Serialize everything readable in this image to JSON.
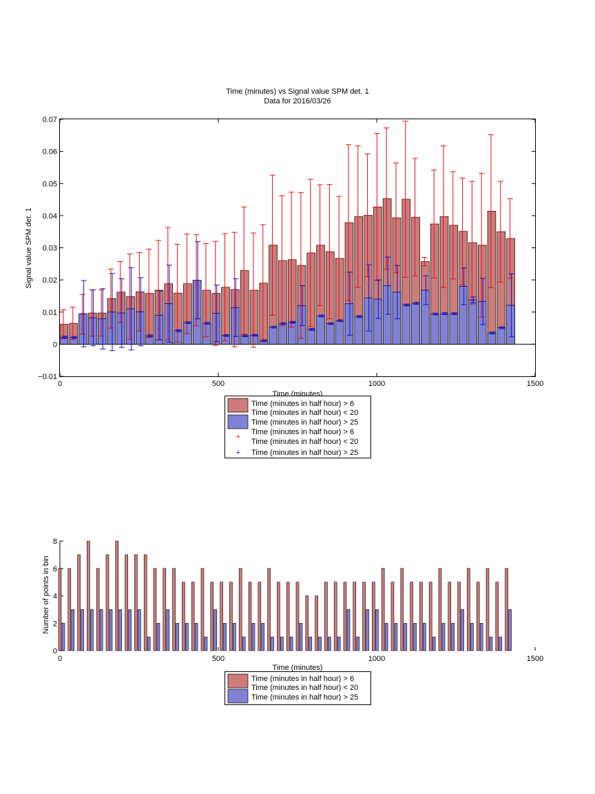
{
  "colors": {
    "red_fill": "#cd7b7b",
    "blue_fill": "#8181d3",
    "red_line": "#e01010",
    "blue_line": "#1010d0",
    "axis": "#000000"
  },
  "chart_data": [
    {
      "type": "bar",
      "title": "Time (minutes) vs Signal value SPM det. 1",
      "subtitle": "Data for 2016/03/26",
      "xlabel": "Time (minutes)",
      "ylabel": "Signal value SPM det. 1",
      "xlim": [
        0,
        1500
      ],
      "ylim": [
        -0.01,
        0.07
      ],
      "xticks": [
        "0",
        "500",
        "1000",
        "1500"
      ],
      "yticks": [
        "−0.01",
        "0",
        "0.01",
        "0.02",
        "0.03",
        "0.04",
        "0.05",
        "0.06",
        "0.07"
      ],
      "legend_position": "below",
      "legend": [
        "Time (minutes in half hour) > 6\nTime (minutes in half hour) < 20",
        "Time (minutes in half hour) > 25",
        "Time (minutes in half hour) > 6\nTime (minutes in half hour) < 20",
        "Time (minutes in half hour) > 25"
      ],
      "x": [
        13,
        43,
        73,
        103,
        133,
        163,
        193,
        223,
        253,
        283,
        313,
        343,
        373,
        403,
        433,
        463,
        493,
        523,
        553,
        583,
        613,
        643,
        673,
        703,
        733,
        763,
        793,
        823,
        853,
        883,
        913,
        943,
        973,
        1003,
        1033,
        1063,
        1093,
        1123,
        1153,
        1183,
        1213,
        1243,
        1273,
        1303,
        1333,
        1363,
        1393,
        1423
      ],
      "series": [
        {
          "mean": [
            0.0062,
            0.0065,
            0.0093,
            0.0097,
            0.0097,
            0.0142,
            0.0162,
            0.0148,
            0.0163,
            0.0158,
            0.0168,
            0.0188,
            0.0159,
            0.0188,
            0.0199,
            0.0168,
            0.0158,
            0.0177,
            0.017,
            0.0229,
            0.0168,
            0.019,
            0.0308,
            0.026,
            0.0263,
            0.0245,
            0.0284,
            0.0308,
            0.0288,
            0.0267,
            0.0378,
            0.0397,
            0.0401,
            0.0427,
            0.0453,
            0.0393,
            0.0451,
            0.0395,
            0.0257,
            0.0374,
            0.0397,
            0.037,
            0.0351,
            0.0316,
            0.0308,
            0.0414,
            0.035,
            0.0329
          ],
          "err": [
            0.0045,
            0.005,
            0.0062,
            0.0072,
            0.0072,
            0.0092,
            0.0095,
            0.0133,
            0.0122,
            0.0138,
            0.0155,
            0.0175,
            0.0152,
            0.0155,
            0.0142,
            0.0145,
            0.0162,
            0.0167,
            0.0178,
            0.0198,
            0.0178,
            0.0182,
            0.0218,
            0.0202,
            0.021,
            0.0227,
            0.0229,
            0.0188,
            0.0209,
            0.0193,
            0.0243,
            0.022,
            0.0191,
            0.0229,
            0.022,
            0.0171,
            0.0243,
            0.0183,
            0.0013,
            0.0168,
            0.022,
            0.0167,
            0.0166,
            0.0191,
            0.0224,
            0.0238,
            0.0157,
            0.0124
          ]
        },
        {
          "mean": [
            0.0022,
            0.0021,
            0.0095,
            0.0082,
            0.0079,
            0.01,
            0.0097,
            0.011,
            0.0101,
            0.0026,
            0.009,
            0.0126,
            0.0042,
            0.0067,
            0.0199,
            0.0065,
            0.0096,
            0.0027,
            0.0114,
            0.0026,
            0.0028,
            0.0011,
            0.0053,
            0.0064,
            0.0068,
            0.012,
            0.0046,
            0.0088,
            0.0064,
            0.0073,
            0.0126,
            0.0086,
            0.0144,
            0.014,
            0.0182,
            0.0162,
            0.0122,
            0.0127,
            0.0168,
            0.0094,
            0.0095,
            0.0095,
            0.018,
            0.0138,
            0.0133,
            0.0035,
            0.0051,
            0.0121
          ],
          "err": [
            0.0003,
            0.0003,
            0.0103,
            0.0087,
            0.0094,
            0.012,
            0.0107,
            0.0128,
            0.0106,
            0.0003,
            0.0076,
            0.012,
            0.0003,
            0.0003,
            0.012,
            0.0003,
            0.0088,
            0.0003,
            0.009,
            0.0003,
            0.0003,
            0.0003,
            0.0003,
            0.0003,
            0.0003,
            0.0062,
            0.0003,
            0.0003,
            0.0003,
            0.0003,
            0.0098,
            0.0003,
            0.0103,
            0.006,
            0.0089,
            0.0083,
            0.0003,
            0.0003,
            0.0045,
            0.0003,
            0.0003,
            0.0003,
            0.0057,
            0.0009,
            0.0072,
            0.0003,
            0.0003,
            0.0098
          ]
        }
      ]
    },
    {
      "type": "bar",
      "xlabel": "Time (minutes)",
      "ylabel": "Number of points in bin",
      "xlim": [
        0,
        1500
      ],
      "ylim": [
        0,
        8
      ],
      "xticks": [
        "0",
        "500",
        "1000",
        "1500"
      ],
      "yticks": [
        "0",
        "2",
        "4",
        "6",
        "8"
      ],
      "legend_position": "below",
      "legend": [
        "Time (minutes in half hour) > 6\nTime (minutes in half hour) < 20",
        "Time (minutes in half hour) > 25"
      ],
      "x": [
        13,
        43,
        73,
        103,
        133,
        163,
        193,
        223,
        253,
        283,
        313,
        343,
        373,
        403,
        433,
        463,
        493,
        523,
        553,
        583,
        613,
        643,
        673,
        703,
        733,
        763,
        793,
        823,
        853,
        883,
        913,
        943,
        973,
        1003,
        1033,
        1063,
        1093,
        1123,
        1153,
        1183,
        1213,
        1243,
        1273,
        1303,
        1333,
        1363,
        1393,
        1423
      ],
      "series": [
        {
          "values": [
            6,
            6,
            7,
            8,
            6,
            7,
            8,
            7,
            7,
            7,
            6,
            6,
            6,
            5,
            5,
            6,
            5,
            5,
            5,
            6,
            5,
            5,
            6,
            5,
            5,
            5,
            4,
            4,
            5,
            5,
            5,
            5,
            5,
            5,
            6,
            5,
            6,
            5,
            5,
            5,
            6,
            5,
            5,
            6,
            5,
            6,
            5,
            6
          ]
        },
        {
          "values": [
            2,
            3,
            3,
            3,
            3,
            3,
            3,
            3,
            3,
            1,
            2,
            3,
            2,
            2,
            2,
            1,
            3,
            2,
            2,
            1,
            2,
            2,
            1,
            1,
            1,
            2,
            1,
            1,
            1,
            1,
            3,
            1,
            3,
            3,
            2,
            2,
            2,
            2,
            2,
            1,
            2,
            2,
            3,
            2,
            2,
            1,
            1,
            3
          ]
        }
      ]
    }
  ]
}
